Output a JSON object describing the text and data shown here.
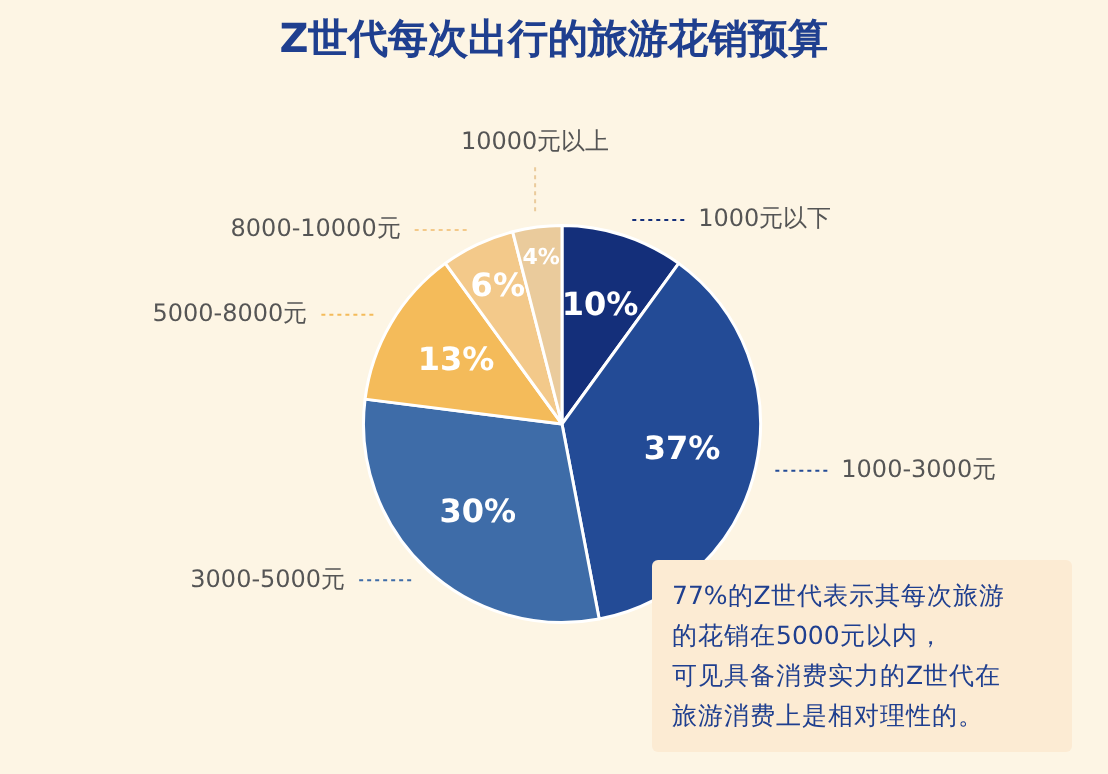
{
  "chart_data": {
    "type": "pie",
    "title": "Z世代每次出行的旅游花销预算",
    "categories": [
      "1000元以下",
      "1000-3000元",
      "3000-5000元",
      "5000-8000元",
      "8000-10000元",
      "10000元以上"
    ],
    "values": [
      10,
      37,
      30,
      13,
      6,
      4
    ],
    "value_labels": [
      "10%",
      "37%",
      "30%",
      "13%",
      "6%",
      "4%"
    ],
    "colors": [
      "#142f7a",
      "#234b96",
      "#3e6ca8",
      "#f4bb5a",
      "#f3c98a",
      "#eacb9c"
    ],
    "annotations": [
      "77%的Z世代表示其每次旅游的花销在5000元以内，",
      "可见具备消费实力的Z世代在旅游消费上是相对理性的。"
    ]
  }
}
